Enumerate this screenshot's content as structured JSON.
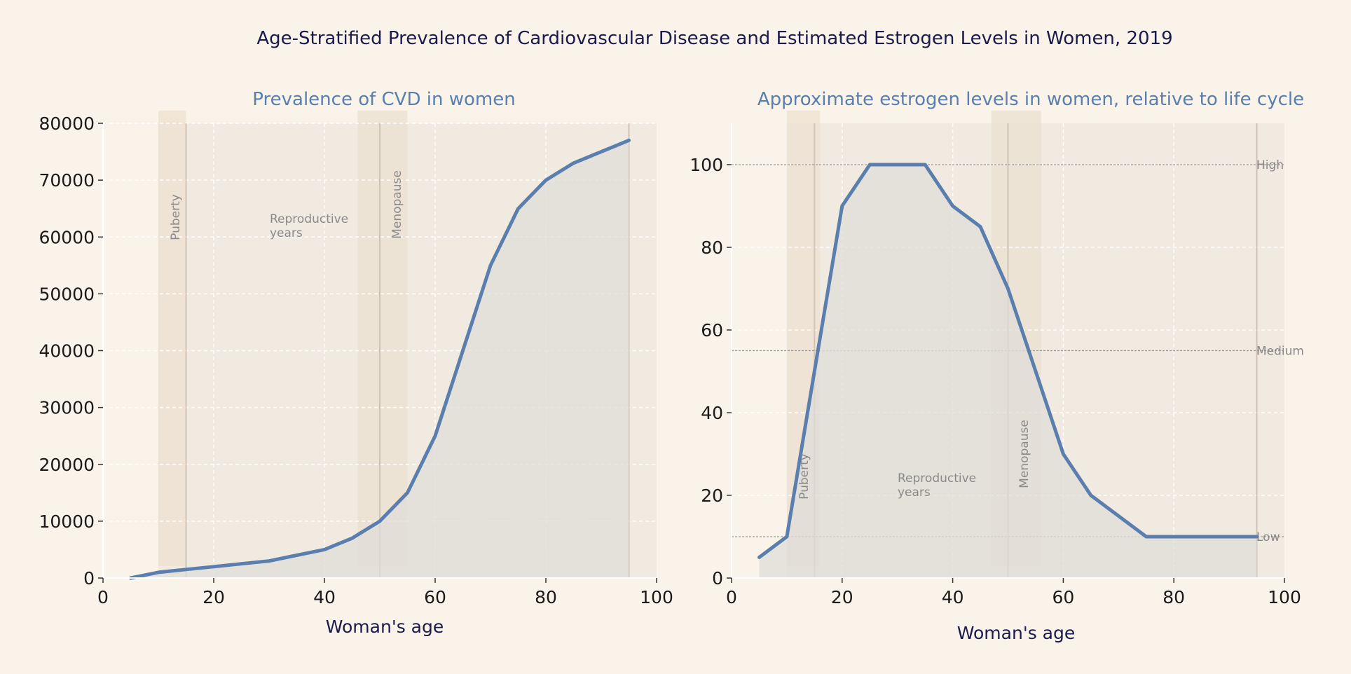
{
  "suptitle": "Age-Stratified Prevalence of Cardiovascular Disease and Estimated Estrogen Levels in Women, 2019",
  "colors": {
    "background": "#faf3e9",
    "line": "#5a7fae",
    "area_fill": "#dfddd8",
    "title": "#5a7fae",
    "label": "#1b1a4d",
    "annotation": "#8a8a8a",
    "puberty_band": "#efe2d2",
    "menopause_band": "#ece1d2"
  },
  "chart_data": [
    {
      "type": "area",
      "title": "Prevalence of CVD in women",
      "xlabel": "Woman's age",
      "ylabel": "",
      "xlim": [
        0,
        100
      ],
      "ylim": [
        0,
        80000
      ],
      "xticks": [
        0,
        20,
        40,
        60,
        80,
        100
      ],
      "yticks": [
        0,
        10000,
        20000,
        30000,
        40000,
        50000,
        60000,
        70000,
        80000
      ],
      "grid": true,
      "series": [
        {
          "x": [
            5,
            10,
            15,
            20,
            25,
            30,
            35,
            40,
            45,
            50,
            55,
            60,
            65,
            70,
            75,
            80,
            85,
            90,
            95
          ],
          "values": [
            0,
            1000,
            1500,
            2000,
            2500,
            3000,
            4000,
            5000,
            7000,
            10000,
            15000,
            25000,
            40000,
            55000,
            65000,
            70000,
            73000,
            75000,
            77000
          ]
        }
      ],
      "annotations": [
        {
          "text": "Puberty"
        },
        {
          "text": "Reproductive\nyears"
        },
        {
          "text": "Menopause"
        }
      ],
      "shaded_bands": [
        {
          "name": "life span",
          "x": [
            10,
            100
          ]
        },
        {
          "name": "puberty",
          "x": [
            10,
            15
          ]
        },
        {
          "name": "menopause",
          "x": [
            46,
            55
          ]
        }
      ],
      "vlines": [
        15,
        50,
        95
      ]
    },
    {
      "type": "area",
      "title": "Approximate estrogen levels in women, relative to life cycle",
      "xlabel": "Woman's age",
      "ylabel": "",
      "xlim": [
        0,
        100
      ],
      "ylim": [
        0,
        110
      ],
      "xticks": [
        0,
        20,
        40,
        60,
        80,
        100
      ],
      "yticks": [
        0,
        20,
        40,
        60,
        80,
        100
      ],
      "grid": true,
      "series": [
        {
          "x": [
            5,
            10,
            15,
            20,
            25,
            30,
            35,
            40,
            45,
            50,
            55,
            60,
            65,
            70,
            75,
            80,
            85,
            90,
            95
          ],
          "values": [
            5,
            10,
            50,
            90,
            100,
            100,
            100,
            90,
            85,
            70,
            50,
            30,
            20,
            15,
            10,
            10,
            10,
            10,
            10
          ]
        }
      ],
      "reference_lines": [
        {
          "y": 100,
          "label": "High"
        },
        {
          "y": 55,
          "label": "Medium"
        },
        {
          "y": 10,
          "label": "Low"
        }
      ],
      "annotations": [
        {
          "text": "Puberty"
        },
        {
          "text": "Reproductive\nyears"
        },
        {
          "text": "Menopause"
        }
      ],
      "shaded_bands": [
        {
          "name": "life span",
          "x": [
            10,
            100
          ]
        },
        {
          "name": "puberty",
          "x": [
            10,
            16
          ]
        },
        {
          "name": "menopause",
          "x": [
            47,
            56
          ]
        }
      ],
      "vlines": [
        15,
        50,
        95
      ]
    }
  ]
}
